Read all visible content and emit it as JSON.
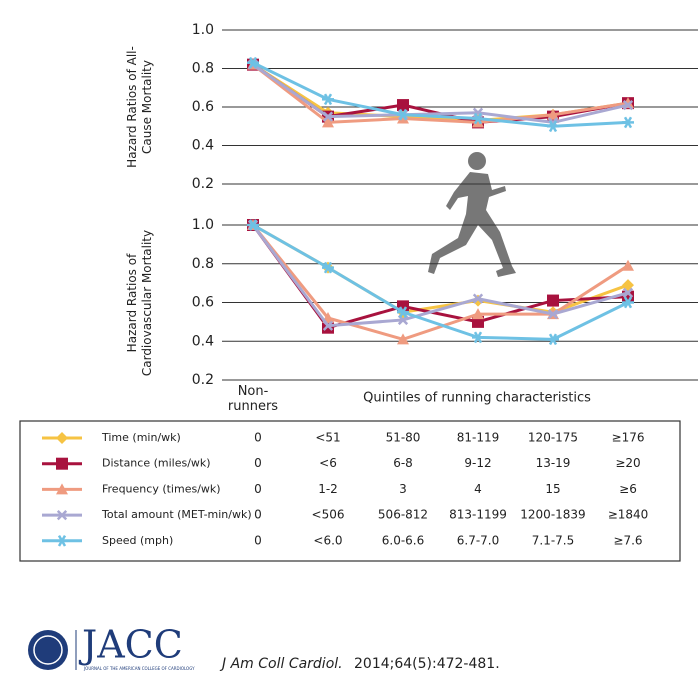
{
  "chart_data": [
    {
      "type": "line",
      "y_label": "Hazard Ratios of All-Cause Mortality",
      "ylim": [
        0.2,
        1.0
      ],
      "yticks": [
        0.2,
        0.4,
        0.6,
        {
          "value": 1,
          "label": "1.0"
        },
        0.8
      ],
      "grid": true,
      "series": [
        {
          "name": "Time (min/wk)",
          "color": "#f6c343",
          "marker": "diamond",
          "cells": [
            "0",
            "<51",
            "51-80",
            "81-119",
            "120-175",
            "≥176"
          ],
          "values": [
            0.82,
            0.57,
            0.55,
            0.53,
            0.56,
            0.62
          ]
        },
        {
          "name": "Distance (miles/wk)",
          "color": "#a8123e",
          "marker": "square",
          "cells": [
            "0",
            "<6",
            "6-8",
            "9-12",
            "13-19",
            "≥20"
          ],
          "values": [
            0.82,
            0.55,
            0.61,
            0.52,
            0.55,
            0.62
          ]
        },
        {
          "name": "Frequency (times/wk)",
          "color": "#ef9b80",
          "marker": "triangle",
          "cells": [
            "0",
            "1-2",
            "3",
            "4",
            "15",
            "≥6"
          ],
          "values": [
            0.82,
            0.52,
            0.54,
            0.52,
            0.56,
            0.62
          ]
        },
        {
          "name": "Total amount (MET-min/wk)",
          "color": "#a9a8d2",
          "marker": "cross",
          "cells": [
            "0",
            "<506",
            "506-812",
            "813-1199",
            "1200-1839",
            "≥1840"
          ],
          "values": [
            0.82,
            0.55,
            0.56,
            0.57,
            0.52,
            0.61
          ]
        },
        {
          "name": "Speed (mph)",
          "color": "#6ec1e4",
          "marker": "asterisk",
          "cells": [
            "0",
            "<6.0",
            "6.0-6.6",
            "6.7-7.0",
            "7.1-7.5",
            "≥7.6"
          ],
          "values": [
            0.83,
            0.64,
            0.56,
            0.54,
            0.5,
            0.52
          ]
        }
      ]
    },
    {
      "type": "line",
      "y_label": "Hazard Ratios of Cardiovascular Mortality",
      "x_label": "Quintiles of running characteristics",
      "categories": [
        "Non-runners",
        null,
        null,
        null,
        null,
        null
      ],
      "ylim": [
        0.2,
        1.0
      ],
      "yticks": [
        0.2,
        0.4,
        0.6,
        0.8,
        {
          "value": 1,
          "label": "1.0"
        }
      ],
      "grid": true,
      "series": [
        {
          "values": [
            1.0,
            0.78,
            0.55,
            0.61,
            0.55,
            0.69
          ]
        },
        {
          "values": [
            1.0,
            0.47,
            0.58,
            0.5,
            0.61,
            0.63
          ]
        },
        {
          "values": [
            1.0,
            0.52,
            0.41,
            0.54,
            0.54,
            0.79
          ]
        },
        {
          "values": [
            1.0,
            0.48,
            0.51,
            0.62,
            0.54,
            0.65
          ]
        },
        {
          "values": [
            1.0,
            0.78,
            0.55,
            0.42,
            0.41,
            0.6
          ]
        }
      ]
    }
  ],
  "footer": {
    "logo": "JACC",
    "logo_subtitle": "JOURNAL OF THE AMERICAN COLLEGE OF CARDIOLOGY",
    "journal": "J Am Coll Cardiol.",
    "citation": "2014;64(5):472-481."
  }
}
